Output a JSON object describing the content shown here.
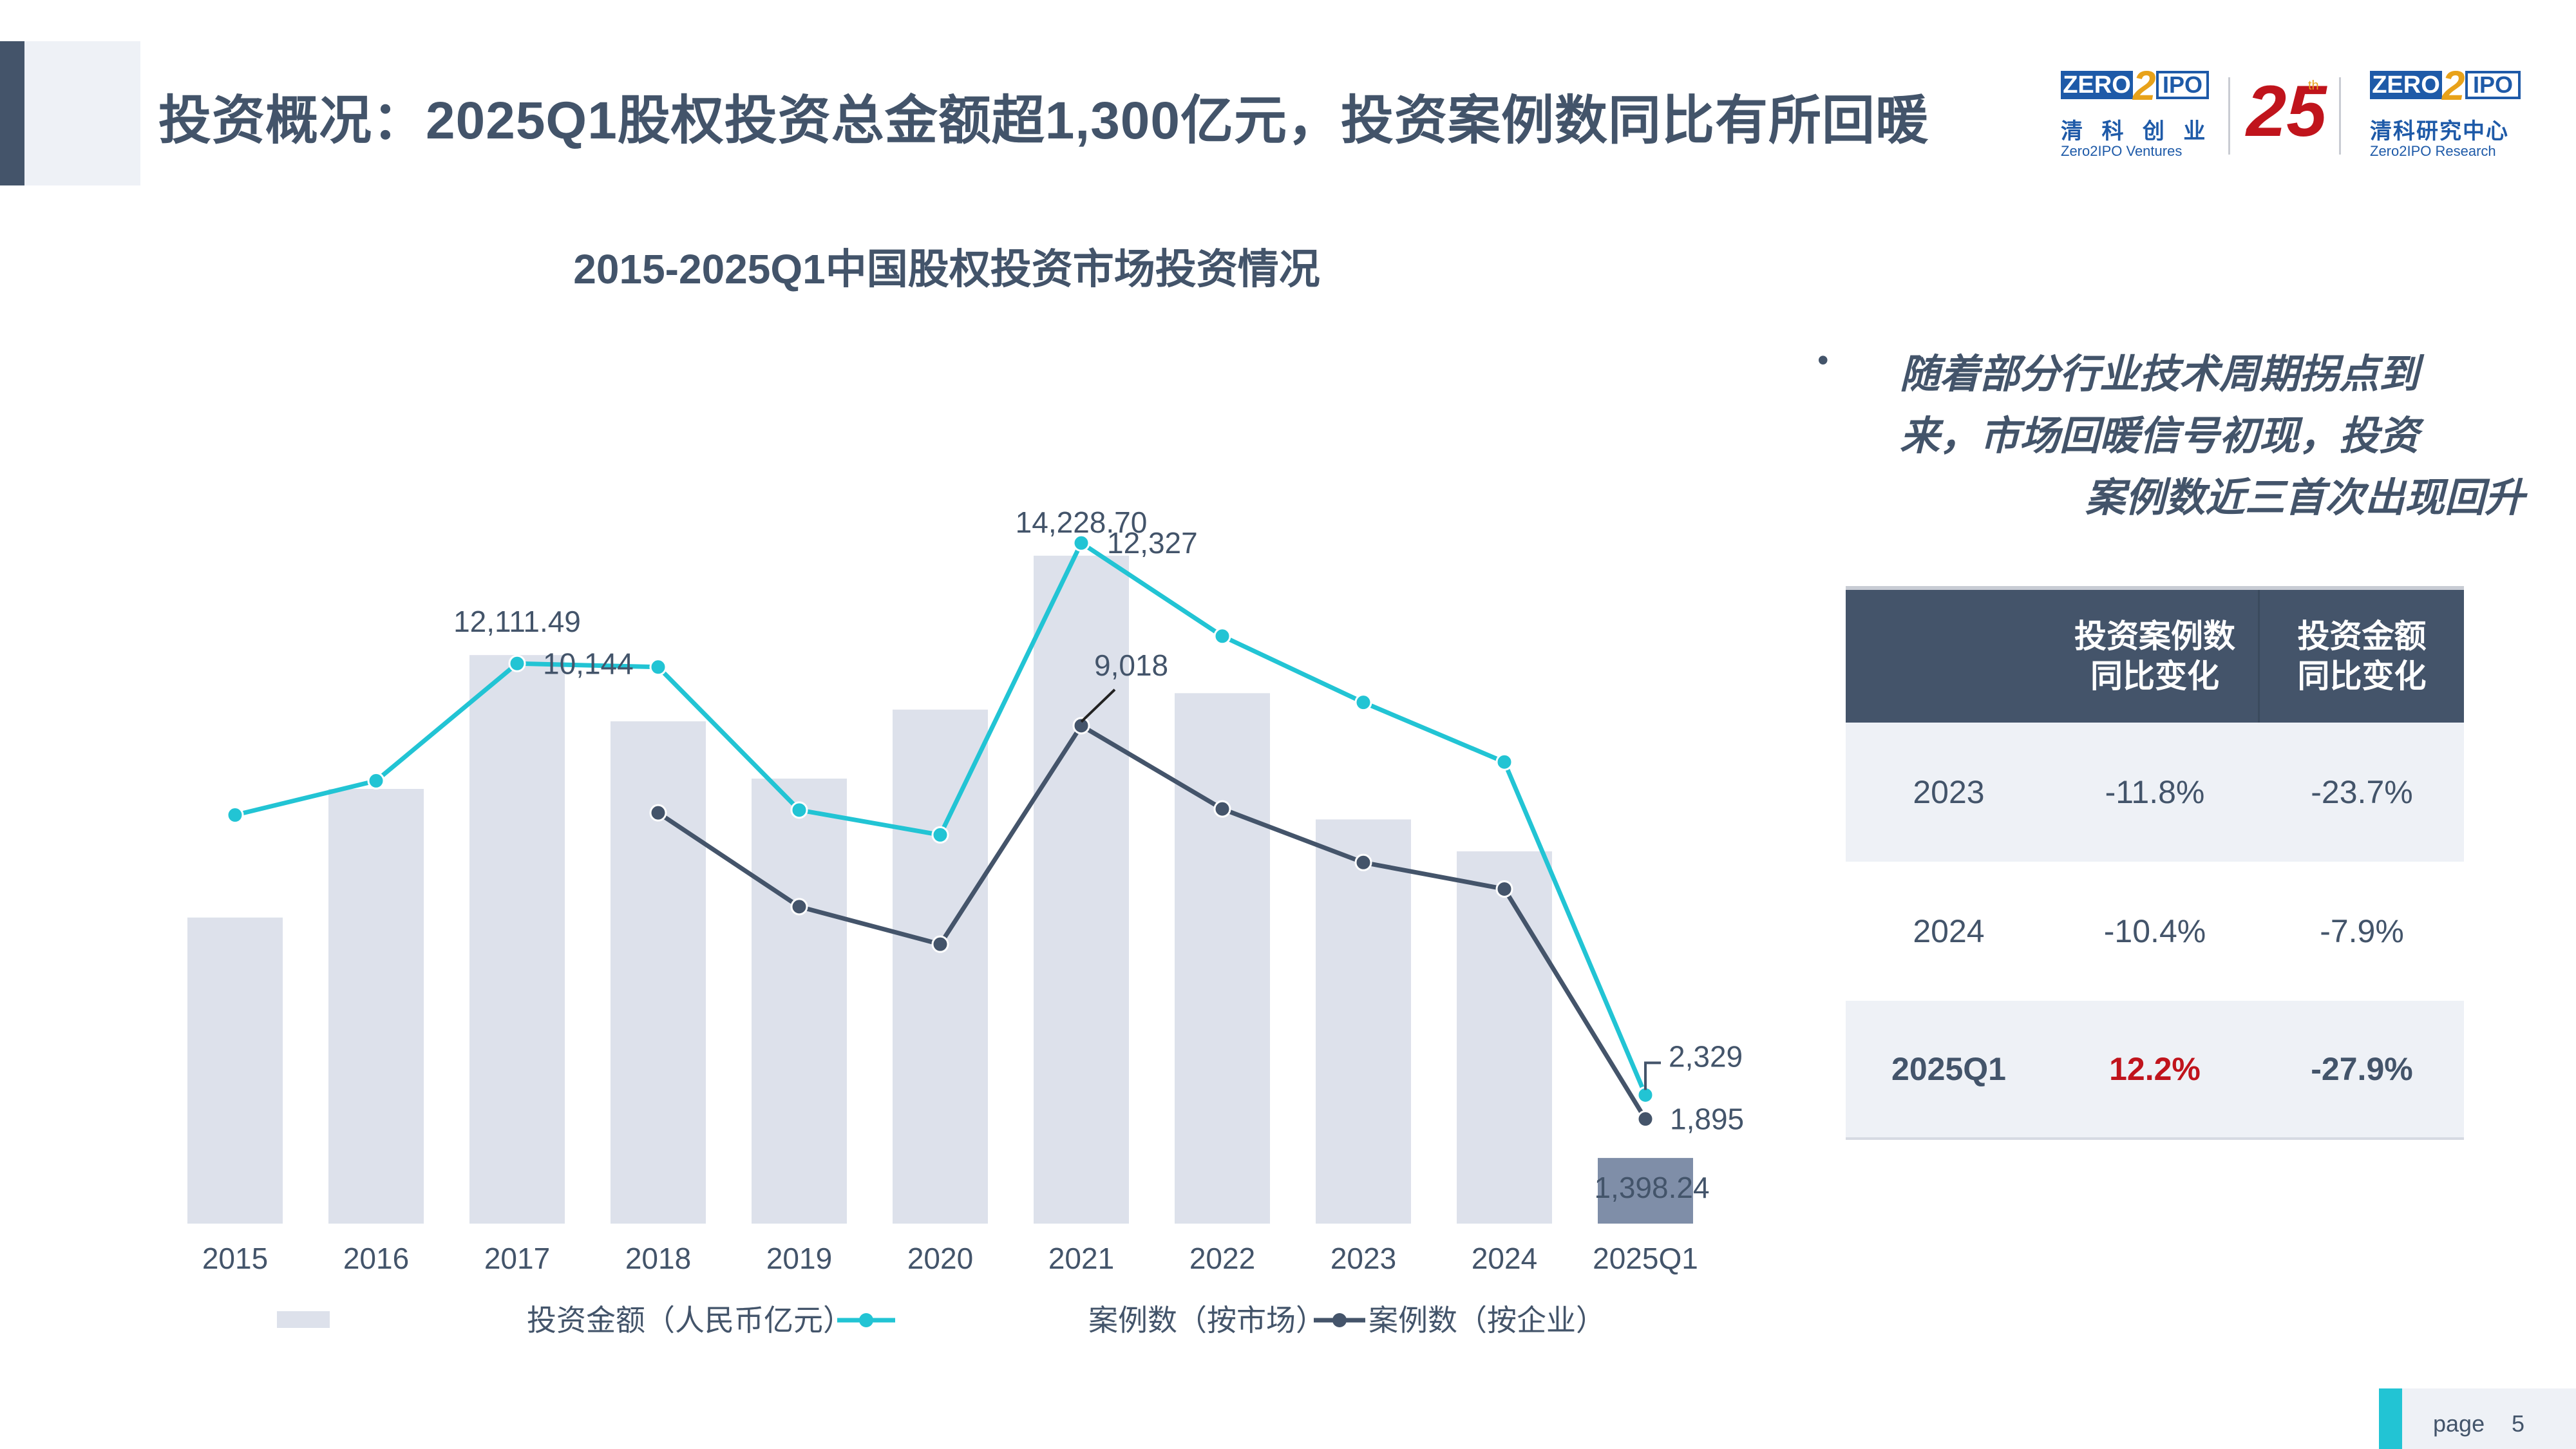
{
  "header": {
    "title": "投资概况：2025Q1股权投资总金额超1,300亿元，投资案例数同比有所回暖",
    "logo_left": {
      "box1": "ZERO",
      "box2": "IPO",
      "numeral": "2",
      "cn": "清 科 创 业",
      "en": "Zero2IPO Ventures"
    },
    "logo_mid": {
      "number": "25",
      "suffix": "th"
    },
    "logo_right": {
      "box1": "ZERO",
      "box2": "IPO",
      "numeral": "2",
      "cn": "清科研究中心",
      "en": "Zero2IPO Research"
    }
  },
  "chart_data": {
    "type": "bar",
    "title": "2015-2025Q1中国股权投资市场投资情况",
    "categories": [
      "2015",
      "2016",
      "2017",
      "2018",
      "2019",
      "2020",
      "2021",
      "2022",
      "2023",
      "2024",
      "2025Q1"
    ],
    "series": [
      {
        "name": "投资金额（人民币亿元）",
        "kind": "bar",
        "axis": "left",
        "values": [
          6520,
          9260,
          12111.49,
          10700,
          9480,
          10950,
          14228.7,
          11300,
          8610,
          7930,
          1398.24
        ]
      },
      {
        "name": "案例数（按市场）",
        "kind": "line",
        "axis": "right",
        "values": [
          7400,
          8020,
          10144,
          10080,
          7490,
          7040,
          12327,
          10640,
          9440,
          8360,
          2329
        ]
      },
      {
        "name": "案例数（按企业）",
        "kind": "line",
        "axis": "right",
        "values": null
      }
    ],
    "series_company_values": [
      null,
      null,
      null,
      7440,
      5740,
      5060,
      9018,
      7510,
      6540,
      6060,
      1895
    ],
    "data_labels": {
      "bars": {
        "2017": "12,111.49",
        "2021": "14,228.70",
        "2025Q1": "1,398.24"
      },
      "market": {
        "2017": "10,144",
        "2021": "12,327",
        "2025Q1": "2,329"
      },
      "company": {
        "2021": "9,018",
        "2025Q1": "1,895"
      }
    },
    "ylim_left": [
      0,
      17000
    ],
    "ylim_right": [
      0,
      16500
    ],
    "grid": false,
    "legend": "bottom",
    "colors": {
      "bar": "#dde1eb",
      "bar_last": "#7f8ea8",
      "market": "#22c4d4",
      "company": "#44546a"
    }
  },
  "side": {
    "bullet": "•",
    "note_lines": [
      "随着部分行业技术周期拐点到",
      "来，市场回暖信号初现，投资",
      "案例数近三首次出现回升"
    ],
    "table": {
      "headers": [
        "",
        "投资案例数\n同比变化",
        "投资金额\n同比变化"
      ],
      "rows": [
        {
          "year": "2023",
          "cases": "-11.8%",
          "amount": "-23.7%"
        },
        {
          "year": "2024",
          "cases": "-10.4%",
          "amount": "-7.9%"
        },
        {
          "year": "2025Q1",
          "cases": "12.2%",
          "amount": "-27.9%"
        }
      ],
      "colors": {
        "header_bg": "#44546a",
        "stripe_bg": "#eef1f6",
        "positive": "#c0141c"
      }
    }
  },
  "footer": {
    "page_label": "page",
    "page_number": "5"
  }
}
